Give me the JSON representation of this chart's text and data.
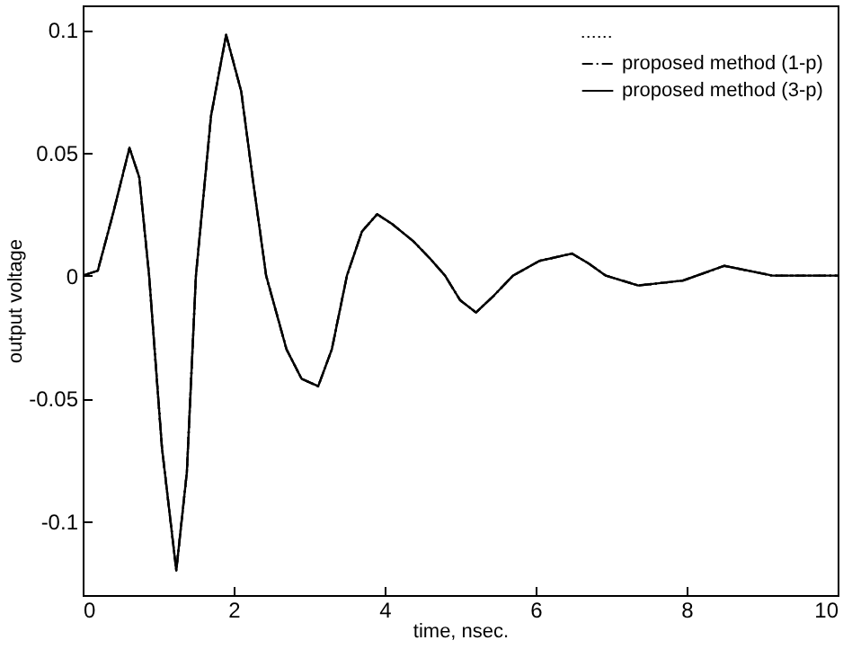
{
  "chart_data": {
    "type": "line",
    "xlabel": "time, nsec.",
    "ylabel": "output voltage",
    "x": [
      0,
      0.2,
      0.4,
      0.62,
      0.75,
      0.88,
      1.05,
      1.24,
      1.38,
      1.5,
      1.7,
      1.9,
      2.1,
      2.25,
      2.43,
      2.7,
      2.9,
      3.12,
      3.3,
      3.5,
      3.7,
      3.9,
      4.1,
      4.38,
      4.6,
      4.8,
      5.0,
      5.21,
      5.45,
      5.7,
      6.05,
      6.48,
      6.7,
      6.93,
      7.36,
      7.95,
      8.5,
      9.14,
      10
    ],
    "series": [
      {
        "color": "#000000",
        "line_style": "dotted",
        "values": [
          0,
          0.002,
          0.025,
          0.052,
          0.04,
          0,
          -0.07,
          -0.12,
          -0.08,
          0,
          0.065,
          0.098,
          0.075,
          0.04,
          0,
          -0.03,
          -0.042,
          -0.045,
          -0.03,
          0,
          0.018,
          0.025,
          0.021,
          0.014,
          0.007,
          0,
          -0.01,
          -0.015,
          -0.008,
          0,
          0.006,
          0.009,
          0.005,
          0,
          -0.004,
          -0.002,
          0.004,
          0,
          0
        ]
      },
      {
        "name": "proposed method (1-p)",
        "color": "#000000",
        "line_style": "dashdot",
        "values": [
          0,
          0.002,
          0.025,
          0.052,
          0.04,
          0,
          -0.07,
          -0.12,
          -0.08,
          0,
          0.065,
          0.098,
          0.075,
          0.04,
          0,
          -0.03,
          -0.042,
          -0.045,
          -0.03,
          0,
          0.018,
          0.025,
          0.021,
          0.014,
          0.007,
          0,
          -0.01,
          -0.015,
          -0.008,
          0,
          0.006,
          0.009,
          0.005,
          0,
          -0.004,
          -0.002,
          0.004,
          0,
          0
        ]
      },
      {
        "name": "proposed method (3-p)",
        "color": "#000000",
        "line_style": "solid",
        "values": [
          0,
          0.002,
          0.025,
          0.052,
          0.04,
          0,
          -0.07,
          -0.12,
          -0.08,
          0,
          0.065,
          0.098,
          0.075,
          0.04,
          0,
          -0.03,
          -0.042,
          -0.045,
          -0.03,
          0,
          0.018,
          0.025,
          0.021,
          0.014,
          0.007,
          0,
          -0.01,
          -0.015,
          -0.008,
          0,
          0.006,
          0.009,
          0.005,
          0,
          -0.004,
          -0.002,
          0.004,
          0,
          0
        ]
      }
    ],
    "xlim": [
      0,
      10
    ],
    "xticks": [
      0,
      2,
      4,
      6,
      8,
      10
    ],
    "ylim": [
      -0.13,
      0.11
    ],
    "yticks": [
      -0.1,
      -0.05,
      0,
      0.05,
      0.1
    ],
    "legend": "top right",
    "grid": false
  }
}
